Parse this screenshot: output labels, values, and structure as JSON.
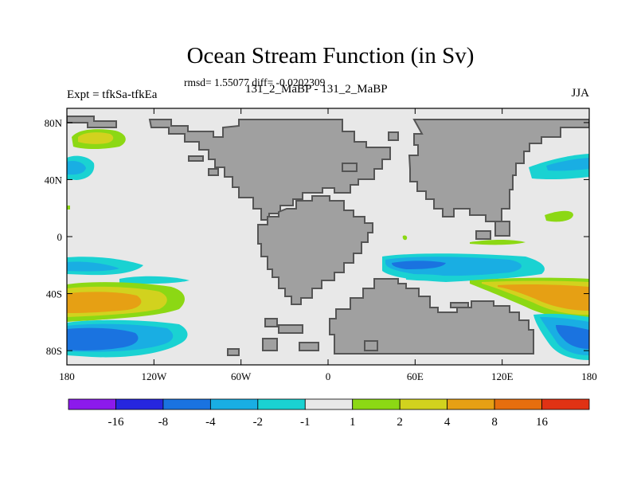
{
  "chart_data": {
    "type": "heatmap",
    "title": "Ocean Stream Function (in Sv)",
    "rmsd_line": "rmsd= 1.55077 diff= -0.0202309",
    "left_label": "Expt = tfkSa-tfkEa",
    "center_label": "131_2_MaBP - 131_2_MaBP",
    "right_label": "JJA",
    "x_ticks": [
      {
        "value": -180,
        "label": "180"
      },
      {
        "value": -120,
        "label": "120W"
      },
      {
        "value": -60,
        "label": "60W"
      },
      {
        "value": 0,
        "label": "0"
      },
      {
        "value": 60,
        "label": "60E"
      },
      {
        "value": 120,
        "label": "120E"
      },
      {
        "value": 180,
        "label": "180"
      }
    ],
    "y_ticks": [
      {
        "value": 80,
        "label": "80N"
      },
      {
        "value": 40,
        "label": "40N"
      },
      {
        "value": 0,
        "label": "0"
      },
      {
        "value": -40,
        "label": "40S"
      },
      {
        "value": -80,
        "label": "80S"
      }
    ],
    "xlim": [
      -180,
      180
    ],
    "ylim": [
      -90,
      90
    ],
    "colorbar": {
      "levels": [
        "-16",
        "-8",
        "-4",
        "-2",
        "-1",
        "1",
        "2",
        "4",
        "8",
        "16"
      ],
      "colors": [
        "#8c1aec",
        "#2626df",
        "#1a73e0",
        "#19aee3",
        "#1ad2d2",
        "#e8e8e8",
        "#8cd814",
        "#d2d21e",
        "#e6a014",
        "#e66e0e",
        "#e03214"
      ]
    },
    "colors": {
      "land": "#a0a0a0",
      "ocean": "#e8e8e8",
      "coast": "#555555"
    },
    "regions": [
      {
        "name": "north-pacific-yellow",
        "value": 3,
        "lon": -165,
        "lat": 64
      },
      {
        "name": "north-pacific-cyan",
        "value": -1.5,
        "lon": -170,
        "lat": 45
      },
      {
        "name": "south-pacific-cyan",
        "value": -1.5,
        "lon": -150,
        "lat": -25
      },
      {
        "name": "southern-ocean-orange",
        "value": 6,
        "lon": -155,
        "lat": -48
      },
      {
        "name": "southern-ocean-blue",
        "value": -6,
        "lon": -145,
        "lat": -70
      },
      {
        "name": "indian-ocean-blue",
        "value": -3,
        "lon": 85,
        "lat": -26
      },
      {
        "name": "south-indian-orange",
        "value": 6,
        "lon": 150,
        "lat": -45
      },
      {
        "name": "south-indian-blue",
        "value": -5,
        "lon": 165,
        "lat": -68
      },
      {
        "name": "west-pacific-cyan",
        "value": -1.5,
        "lon": 160,
        "lat": 45
      }
    ]
  }
}
